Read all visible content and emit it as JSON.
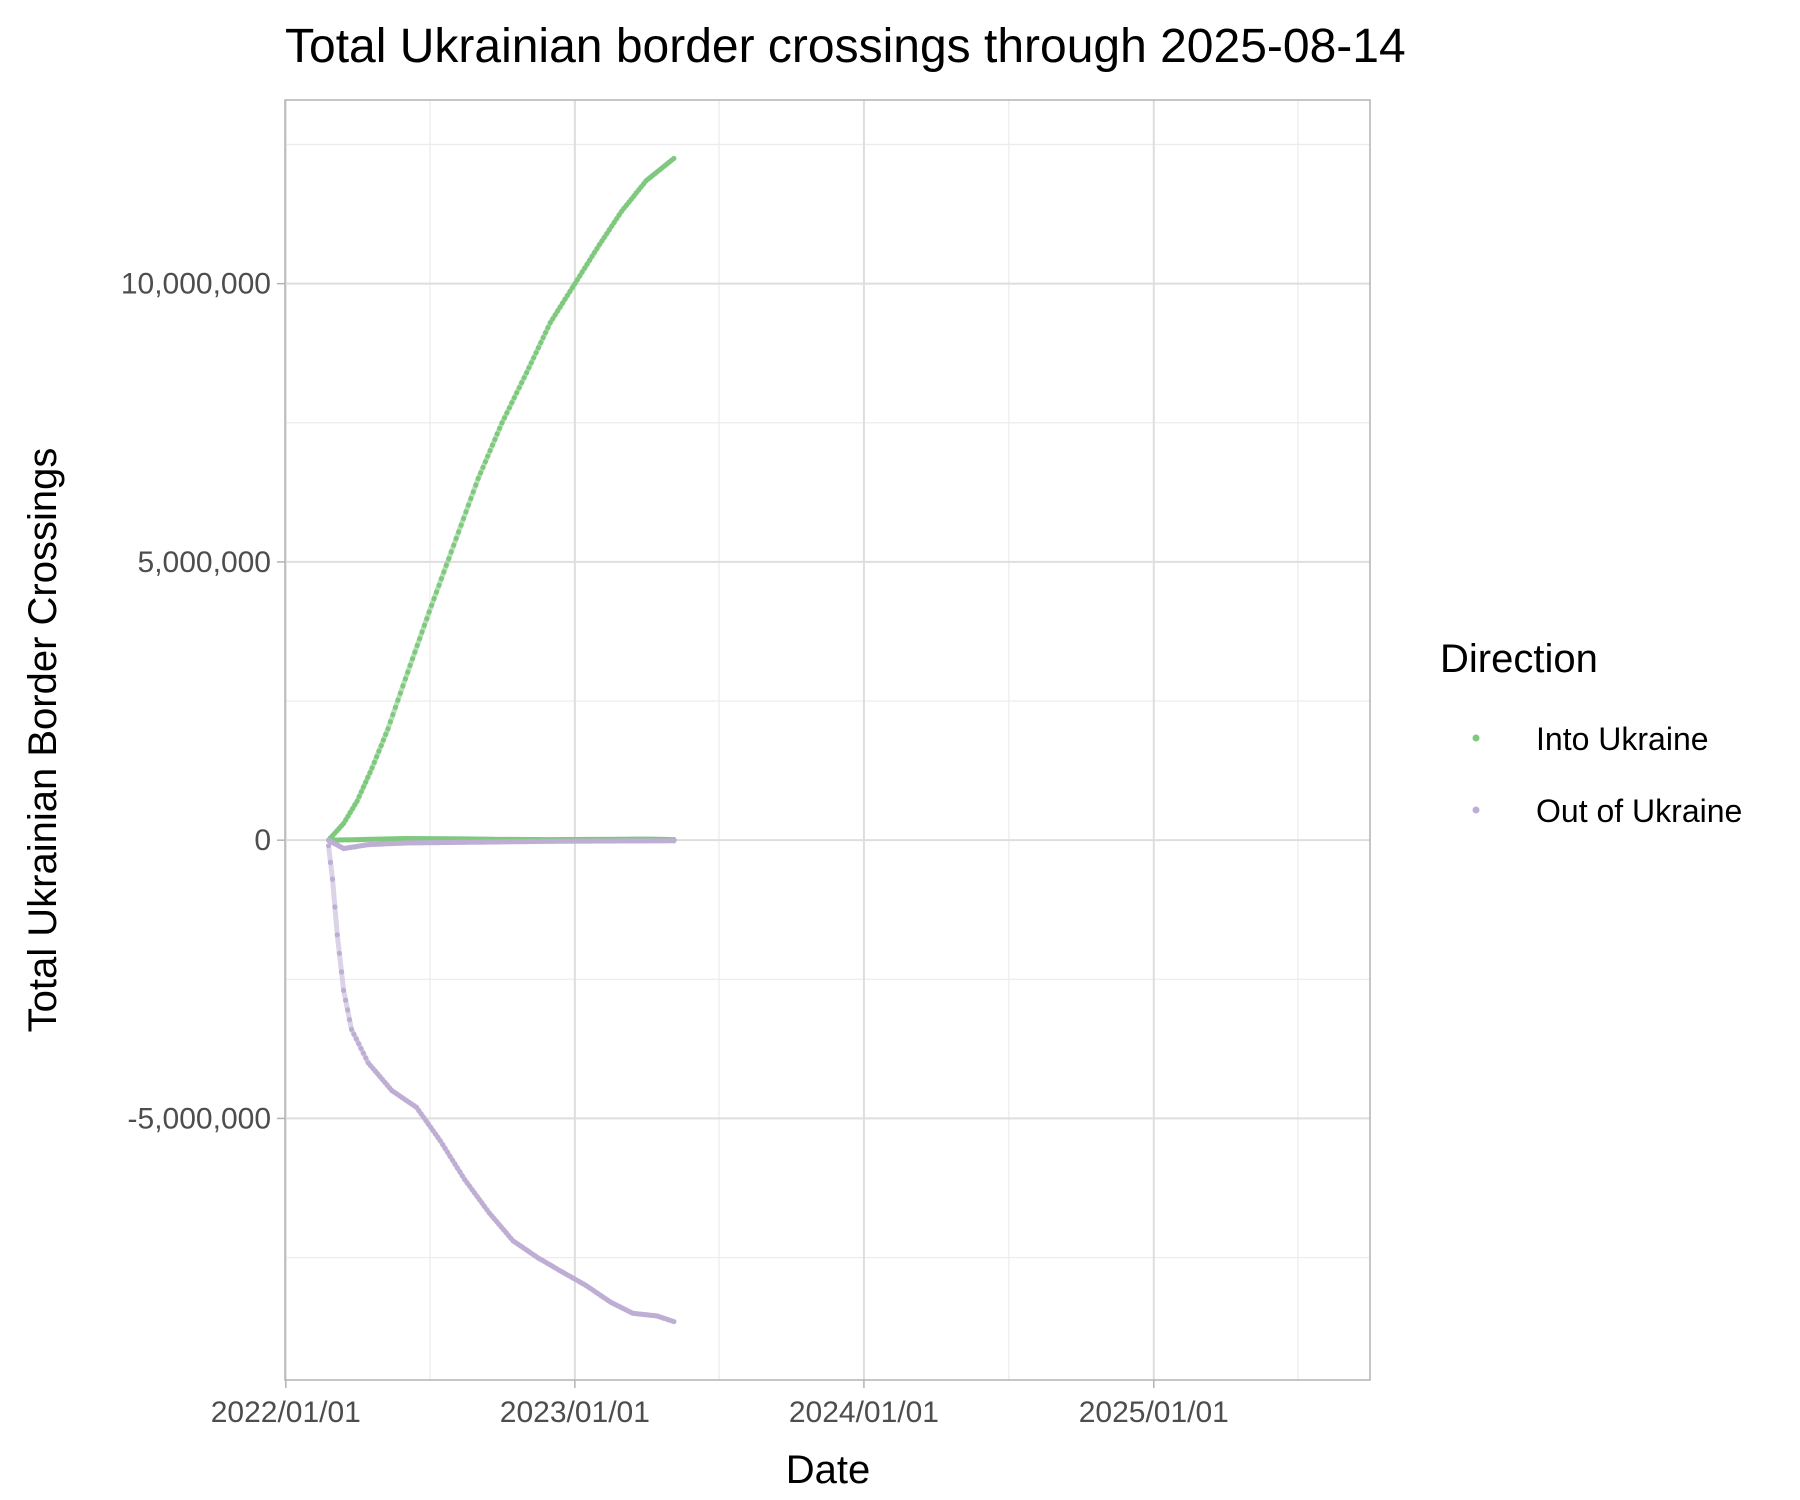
{
  "chart_data": {
    "type": "scatter",
    "title": "Total Ukrainian border crossings through 2025-08-14",
    "xlabel": "Date",
    "ylabel": "Total Ukrainian Border Crossings",
    "x_ticks": [
      "2022/01/01",
      "2023/01/01",
      "2024/01/01",
      "2025/01/01"
    ],
    "y_ticks": [
      "-5,000,000",
      "0",
      "5,000,000",
      "10,000,000"
    ],
    "y_tick_values": [
      -5000000,
      0,
      5000000,
      10000000
    ],
    "xlim": [
      "2021-12-31",
      "2025-10-01"
    ],
    "ylim": [
      -9700000,
      13300000
    ],
    "grid": true,
    "legend": {
      "title": "Direction",
      "position": "right",
      "entries": [
        {
          "label": "Into Ukraine",
          "color": "#7fc97f"
        },
        {
          "label": "Out of Ukraine",
          "color": "#beaed4"
        }
      ]
    },
    "series": [
      {
        "name": "Into Ukraine",
        "color": "#7fc97f",
        "points": [
          [
            "2022-02-24",
            0
          ],
          [
            "2022-03-01",
            80000
          ],
          [
            "2022-03-15",
            300000
          ],
          [
            "2022-04-01",
            700000
          ],
          [
            "2022-04-20",
            1300000
          ],
          [
            "2022-05-10",
            2000000
          ],
          [
            "2022-06-01",
            2900000
          ],
          [
            "2022-07-01",
            4100000
          ],
          [
            "2022-08-01",
            5300000
          ],
          [
            "2022-09-01",
            6500000
          ],
          [
            "2022-10-01",
            7500000
          ],
          [
            "2022-11-01",
            8400000
          ],
          [
            "2022-12-01",
            9300000
          ],
          [
            "2023-01-01",
            10000000
          ],
          [
            "2023-02-01",
            10700000
          ],
          [
            "2023-03-01",
            11300000
          ],
          [
            "2023-04-01",
            11850000
          ],
          [
            "2023-05-06",
            12250000
          ]
        ]
      },
      {
        "name": "Into Ukraine",
        "color": "#7fc97f",
        "points": [
          [
            "2022-02-24",
            0
          ],
          [
            "2022-04-01",
            10000
          ],
          [
            "2022-06-01",
            30000
          ],
          [
            "2022-08-01",
            25000
          ],
          [
            "2022-10-01",
            15000
          ],
          [
            "2022-12-01",
            10000
          ],
          [
            "2023-02-01",
            15000
          ],
          [
            "2023-04-01",
            20000
          ],
          [
            "2023-05-06",
            10000
          ]
        ]
      },
      {
        "name": "Out of Ukraine",
        "color": "#beaed4",
        "points": [
          [
            "2022-02-24",
            -100000
          ],
          [
            "2022-03-01",
            -700000
          ],
          [
            "2022-03-07",
            -1700000
          ],
          [
            "2022-03-15",
            -2700000
          ],
          [
            "2022-03-25",
            -3400000
          ],
          [
            "2022-04-15",
            -4000000
          ],
          [
            "2022-05-15",
            -4500000
          ],
          [
            "2022-06-15",
            -4800000
          ],
          [
            "2022-07-15",
            -5400000
          ],
          [
            "2022-08-15",
            -6100000
          ],
          [
            "2022-09-15",
            -6700000
          ],
          [
            "2022-10-15",
            -7200000
          ],
          [
            "2022-11-15",
            -7500000
          ],
          [
            "2022-12-15",
            -7750000
          ],
          [
            "2023-01-15",
            -8000000
          ],
          [
            "2023-02-15",
            -8300000
          ],
          [
            "2023-03-15",
            -8500000
          ],
          [
            "2023-04-15",
            -8550000
          ],
          [
            "2023-05-06",
            -8650000
          ]
        ]
      },
      {
        "name": "Out of Ukraine",
        "color": "#beaed4",
        "points": [
          [
            "2022-02-24",
            0
          ],
          [
            "2022-03-15",
            -150000
          ],
          [
            "2022-04-15",
            -80000
          ],
          [
            "2022-06-01",
            -50000
          ],
          [
            "2022-08-01",
            -40000
          ],
          [
            "2022-10-01",
            -30000
          ],
          [
            "2022-12-01",
            -20000
          ],
          [
            "2023-02-01",
            -15000
          ],
          [
            "2023-05-06",
            -10000
          ]
        ]
      }
    ]
  }
}
